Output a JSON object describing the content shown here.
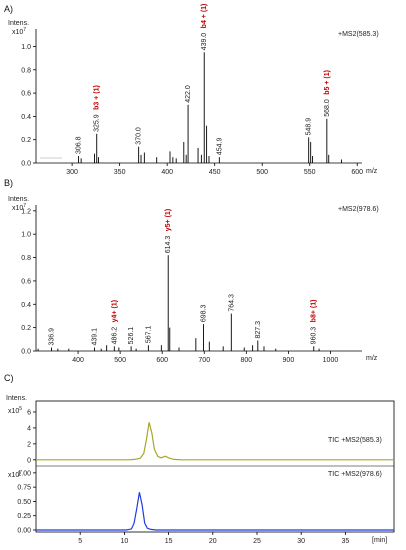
{
  "chart_data": [
    {
      "type": "bar",
      "panel": "A)",
      "ylabel": "Intens.",
      "yexp": "x10",
      "yexp_power": "7",
      "series_label": "+MS2(585.3)",
      "xunit": "m/z",
      "xlim": [
        262,
        605
      ],
      "ylim": [
        0,
        1.15
      ],
      "xticks": [
        300,
        350,
        400,
        450,
        500,
        550,
        600
      ],
      "yticks": [
        0.0,
        0.2,
        0.4,
        0.6,
        0.8,
        1.0
      ],
      "yticklabels": [
        "0.0",
        "0.2",
        "0.4",
        "0.6",
        "0.8",
        "1.0"
      ],
      "peaks": [
        {
          "mz": 306.8,
          "y": 0.06,
          "label": "306.8",
          "color": "#000000"
        },
        {
          "mz": 325.9,
          "y": 0.25,
          "label": "325.9",
          "annot": "b3 + (1)",
          "color": "#000000"
        },
        {
          "mz": 370.0,
          "y": 0.14,
          "label": "370.0",
          "color": "#000000"
        },
        {
          "mz": 422.0,
          "y": 0.5,
          "label": "422.0",
          "color": "#000000"
        },
        {
          "mz": 439.0,
          "y": 0.95,
          "label": "439.0",
          "annot": "b4 + (1)",
          "color": "#000000"
        },
        {
          "mz": 454.9,
          "y": 0.05,
          "label": "454.9",
          "color": "#000000"
        },
        {
          "mz": 548.9,
          "y": 0.22,
          "label": "548.9",
          "color": "#000000"
        },
        {
          "mz": 568.0,
          "y": 0.38,
          "label": "568.0",
          "annot": "b5 + (1)",
          "color": "#000000"
        },
        {
          "mz": 309.5,
          "y": 0.04
        },
        {
          "mz": 323.5,
          "y": 0.08
        },
        {
          "mz": 327.8,
          "y": 0.05
        },
        {
          "mz": 372.5,
          "y": 0.07
        },
        {
          "mz": 376.0,
          "y": 0.09
        },
        {
          "mz": 389.0,
          "y": 0.05
        },
        {
          "mz": 403.0,
          "y": 0.1
        },
        {
          "mz": 406.0,
          "y": 0.05
        },
        {
          "mz": 409.5,
          "y": 0.04
        },
        {
          "mz": 417.5,
          "y": 0.18
        },
        {
          "mz": 420.0,
          "y": 0.07
        },
        {
          "mz": 432.5,
          "y": 0.13
        },
        {
          "mz": 436.0,
          "y": 0.07
        },
        {
          "mz": 441.5,
          "y": 0.32
        },
        {
          "mz": 444.0,
          "y": 0.06
        },
        {
          "mz": 551.0,
          "y": 0.18
        },
        {
          "mz": 553.0,
          "y": 0.06
        },
        {
          "mz": 570.0,
          "y": 0.07
        },
        {
          "mz": 583.5,
          "y": 0.03
        }
      ]
    },
    {
      "type": "bar",
      "panel": "B)",
      "ylabel": "Intens.",
      "yexp": "x10",
      "yexp_power": "7",
      "series_label": "+MS2(978.6)",
      "xunit": "m/z",
      "xlim": [
        300,
        1075
      ],
      "ylim": [
        0,
        1.25
      ],
      "xticks": [
        400,
        500,
        600,
        700,
        800,
        900,
        1000
      ],
      "yticks": [
        0.0,
        0.2,
        0.4,
        0.6,
        0.8,
        1.0,
        1.2
      ],
      "yticklabels": [
        "0.0",
        "0.2",
        "0.4",
        "0.6",
        "0.8",
        "1.0",
        "1.2"
      ],
      "peaks": [
        {
          "mz": 336.9,
          "y": 0.03,
          "label": "336.9",
          "color": "#000000"
        },
        {
          "mz": 439.1,
          "y": 0.03,
          "label": "439.1",
          "color": "#000000"
        },
        {
          "mz": 486.2,
          "y": 0.04,
          "label": "486.2",
          "annot": "y4+ (1)",
          "color": "#000000"
        },
        {
          "mz": 526.1,
          "y": 0.04,
          "label": "526.1",
          "color": "#000000"
        },
        {
          "mz": 567.1,
          "y": 0.05,
          "label": "567.1",
          "color": "#000000"
        },
        {
          "mz": 614.3,
          "y": 0.82,
          "label": "614.3",
          "annot": "y5+ (1)",
          "color": "#000000"
        },
        {
          "mz": 698.3,
          "y": 0.23,
          "label": "698.3",
          "color": "#000000"
        },
        {
          "mz": 764.3,
          "y": 0.32,
          "label": "764.3",
          "color": "#000000"
        },
        {
          "mz": 827.3,
          "y": 0.09,
          "label": "827.3",
          "color": "#000000"
        },
        {
          "mz": 960.3,
          "y": 0.04,
          "label": "960.3",
          "annot": "b8+ (1)",
          "color": "#000000"
        },
        {
          "mz": 305.0,
          "y": 0.02
        },
        {
          "mz": 352.0,
          "y": 0.02
        },
        {
          "mz": 378.0,
          "y": 0.02
        },
        {
          "mz": 455.0,
          "y": 0.02
        },
        {
          "mz": 468.0,
          "y": 0.05
        },
        {
          "mz": 497.0,
          "y": 0.03
        },
        {
          "mz": 538.0,
          "y": 0.02
        },
        {
          "mz": 598.0,
          "y": 0.05
        },
        {
          "mz": 618.0,
          "y": 0.2
        },
        {
          "mz": 640.0,
          "y": 0.03
        },
        {
          "mz": 680.0,
          "y": 0.11
        },
        {
          "mz": 712.0,
          "y": 0.08
        },
        {
          "mz": 745.0,
          "y": 0.04
        },
        {
          "mz": 795.0,
          "y": 0.03
        },
        {
          "mz": 815.0,
          "y": 0.05
        },
        {
          "mz": 842.0,
          "y": 0.04
        },
        {
          "mz": 870.0,
          "y": 0.02
        },
        {
          "mz": 973.0,
          "y": 0.02
        }
      ]
    },
    {
      "type": "line",
      "panel": "C)",
      "ylabel": "Intens.",
      "xunit": "[min]",
      "xlim": [
        0,
        40.5
      ],
      "xticks": [
        5,
        10,
        15,
        20,
        25,
        30,
        35
      ],
      "panels": [
        {
          "name": "TIC +MS2(585.3)",
          "color": "#a7a72a",
          "yexp": "x10",
          "yexp_power": "5",
          "ylim": [
            -0.4,
            7.0
          ],
          "yticks": [
            0,
            2,
            4,
            6
          ],
          "yticklabels": [
            "0",
            "2",
            "4",
            "6"
          ],
          "x": [
            0,
            10.5,
            11.2,
            11.8,
            12.2,
            12.5,
            12.8,
            13.1,
            13.4,
            13.8,
            14.2,
            14.6,
            15.0,
            15.6,
            16.5,
            40.5
          ],
          "y": [
            0,
            0,
            0.05,
            0.2,
            0.8,
            2.6,
            4.7,
            3.4,
            1.3,
            0.4,
            0.25,
            0.45,
            0.25,
            0.05,
            0,
            0
          ]
        },
        {
          "name": "TIC +MS2(978.6)",
          "color": "#1f3ae0",
          "yexp": "x10",
          "yexp_power": "7",
          "ylim": [
            0,
            1.05
          ],
          "yticks": [
            0.0,
            0.25,
            0.5,
            0.75,
            1.0
          ],
          "yticklabels": [
            "0.00",
            "0.25",
            "0.50",
            "0.75",
            "1.00"
          ],
          "x": [
            0,
            10.2,
            10.8,
            11.1,
            11.4,
            11.7,
            12.0,
            12.3,
            12.6,
            13.0,
            13.6,
            40.5
          ],
          "y": [
            0,
            0,
            0.02,
            0.12,
            0.38,
            0.66,
            0.44,
            0.12,
            0.03,
            0.01,
            0,
            0
          ]
        }
      ]
    }
  ]
}
